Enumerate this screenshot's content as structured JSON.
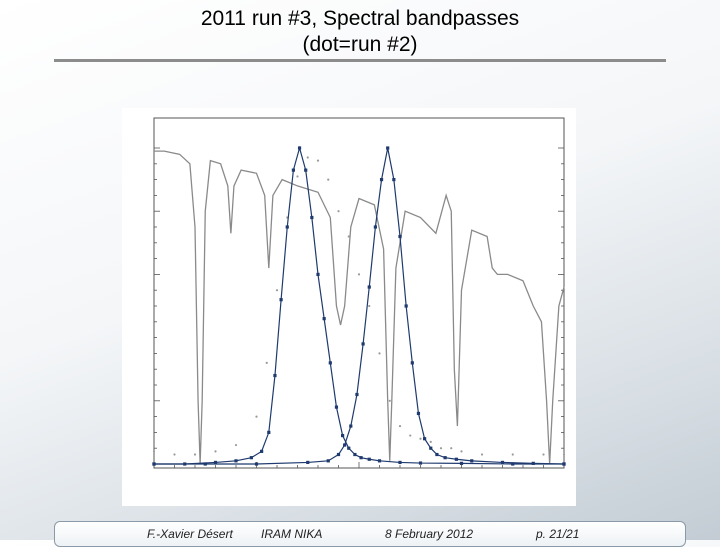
{
  "slide": {
    "title_line1": "2011 run #3, Spectral bandpasses",
    "title_line2": "(dot=run #2)"
  },
  "footer": {
    "author": "F.-Xavier Désert",
    "institute": "IRAM NIKA",
    "date": "8 February 2012",
    "page": "p. 21/21"
  },
  "chart_data": {
    "type": "line",
    "title": "",
    "xlabel": "",
    "ylabel": "",
    "xlim": [
      0,
      400
    ],
    "ylim": [
      0,
      1.0
    ],
    "grid": false,
    "colors": {
      "band": "#1f3a6e",
      "atmosphere": "#8a8a8a",
      "run2": "#9a9a9a"
    },
    "series": [
      {
        "name": "",
        "style": "gray-line",
        "x": [
          0,
          10,
          25,
          35,
          40,
          43,
          45,
          47,
          50,
          55,
          65,
          72,
          75,
          78,
          85,
          100,
          108,
          112,
          116,
          125,
          140,
          160,
          172,
          178,
          182,
          186,
          192,
          200,
          215,
          224,
          228,
          230,
          232,
          236,
          245,
          260,
          275,
          285,
          290,
          293,
          296,
          300,
          310,
          325,
          330,
          335,
          345,
          360,
          370,
          378,
          383,
          386,
          389,
          395,
          400
        ],
        "y": [
          0.99,
          0.99,
          0.98,
          0.95,
          0.75,
          0.2,
          0.0,
          0.2,
          0.8,
          0.96,
          0.95,
          0.88,
          0.73,
          0.88,
          0.93,
          0.92,
          0.85,
          0.62,
          0.85,
          0.9,
          0.88,
          0.86,
          0.78,
          0.5,
          0.44,
          0.5,
          0.75,
          0.84,
          0.82,
          0.68,
          0.2,
          0.01,
          0.2,
          0.62,
          0.8,
          0.78,
          0.73,
          0.85,
          0.8,
          0.3,
          0.12,
          0.55,
          0.74,
          0.72,
          0.62,
          0.6,
          0.6,
          0.58,
          0.5,
          0.45,
          0.2,
          0.0,
          0.2,
          0.5,
          0.56
        ]
      },
      {
        "name": "",
        "style": "dots",
        "x": [
          0,
          20,
          40,
          60,
          80,
          100,
          110,
          120,
          130,
          140,
          150,
          160,
          170,
          180,
          190,
          200,
          210,
          220,
          230,
          240,
          250,
          260,
          270,
          280,
          290,
          300,
          320,
          350,
          380,
          400
        ],
        "y": [
          0.04,
          0.03,
          0.03,
          0.04,
          0.06,
          0.15,
          0.32,
          0.55,
          0.78,
          0.91,
          0.97,
          0.96,
          0.9,
          0.8,
          0.72,
          0.6,
          0.5,
          0.35,
          0.2,
          0.12,
          0.09,
          0.08,
          0.07,
          0.05,
          0.05,
          0.04,
          0.03,
          0.03,
          0.03,
          0.03
        ]
      },
      {
        "name": "",
        "style": "band-line",
        "x": [
          0,
          30,
          60,
          80,
          95,
          105,
          112,
          118,
          124,
          130,
          136,
          142,
          148,
          154,
          160,
          166,
          172,
          178,
          184,
          190,
          196,
          202,
          210,
          220,
          240,
          260,
          300,
          350,
          400
        ],
        "y": [
          0.0,
          0.0,
          0.005,
          0.01,
          0.02,
          0.04,
          0.1,
          0.28,
          0.52,
          0.75,
          0.93,
          1.0,
          0.93,
          0.78,
          0.6,
          0.46,
          0.32,
          0.18,
          0.09,
          0.05,
          0.03,
          0.02,
          0.015,
          0.01,
          0.005,
          0.003,
          0.002,
          0.0,
          0.0
        ]
      },
      {
        "name": "",
        "style": "band-line",
        "x": [
          0,
          50,
          100,
          150,
          170,
          180,
          186,
          192,
          198,
          204,
          210,
          216,
          222,
          228,
          234,
          240,
          246,
          252,
          258,
          264,
          270,
          276,
          284,
          295,
          310,
          340,
          370,
          400
        ],
        "y": [
          0.0,
          0.0,
          0.0,
          0.005,
          0.01,
          0.03,
          0.06,
          0.12,
          0.22,
          0.38,
          0.56,
          0.75,
          0.9,
          1.0,
          0.9,
          0.72,
          0.5,
          0.32,
          0.16,
          0.08,
          0.05,
          0.03,
          0.02,
          0.015,
          0.01,
          0.005,
          0.002,
          0.0
        ]
      }
    ]
  }
}
